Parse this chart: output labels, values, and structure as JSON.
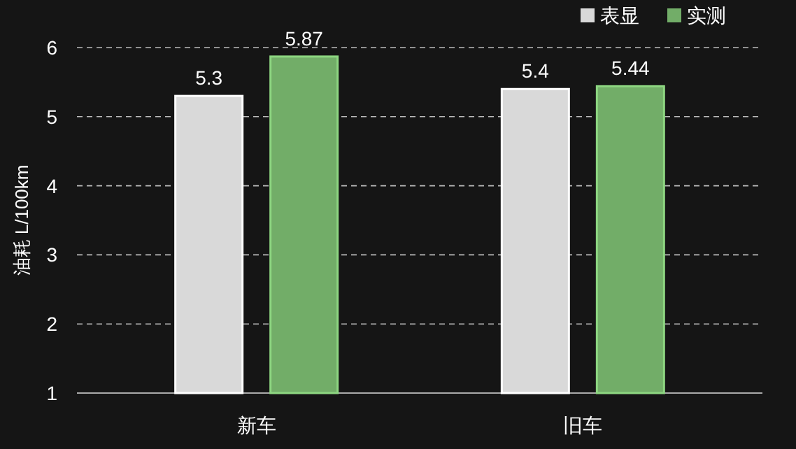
{
  "chart_data": {
    "type": "bar",
    "ylabel": "油耗 L/100km",
    "categories": [
      "新车",
      "旧车"
    ],
    "series": [
      {
        "name": "表显",
        "color": "#d9d9d9",
        "values": [
          5.3,
          5.4
        ]
      },
      {
        "name": "实测",
        "color": "#72ad68",
        "values": [
          5.87,
          5.44
        ]
      }
    ],
    "ylim": [
      1,
      6
    ],
    "yticks": [
      1,
      2,
      3,
      4,
      5,
      6
    ],
    "grid": "y",
    "legend": "top right",
    "data_labels": true
  }
}
